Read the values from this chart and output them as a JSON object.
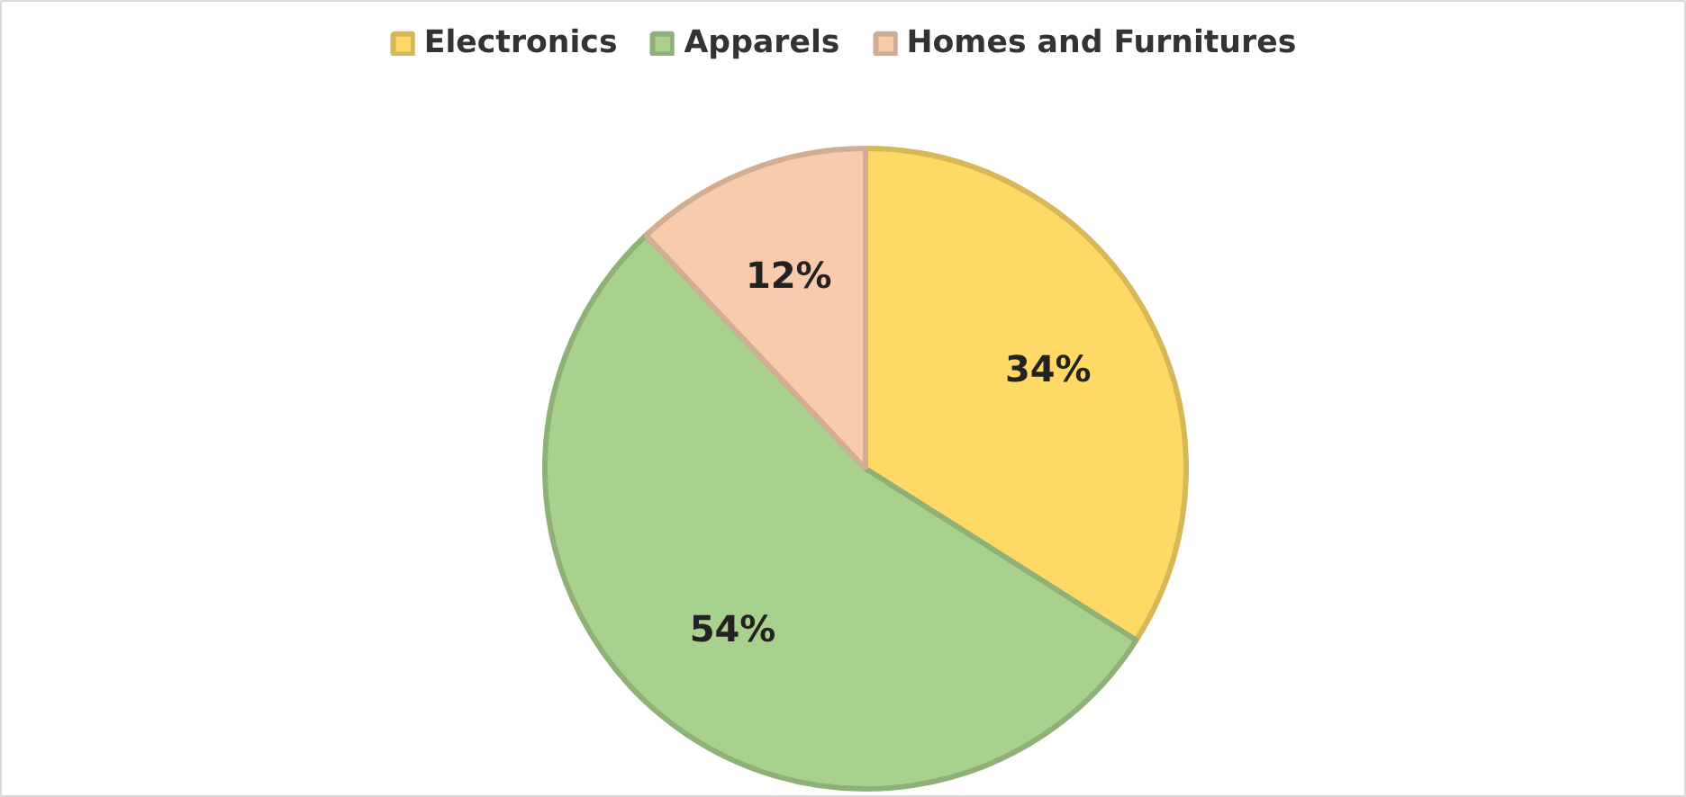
{
  "chart_data": {
    "type": "pie",
    "categories": [
      "Electronics",
      "Apparels",
      "Homes and Furnitures"
    ],
    "values": [
      34,
      54,
      12
    ],
    "colors": [
      "#ffd966",
      "#a9d18e",
      "#f8cbad"
    ],
    "value_labels": [
      "34%",
      "54%",
      "12%"
    ],
    "legend": "top"
  }
}
